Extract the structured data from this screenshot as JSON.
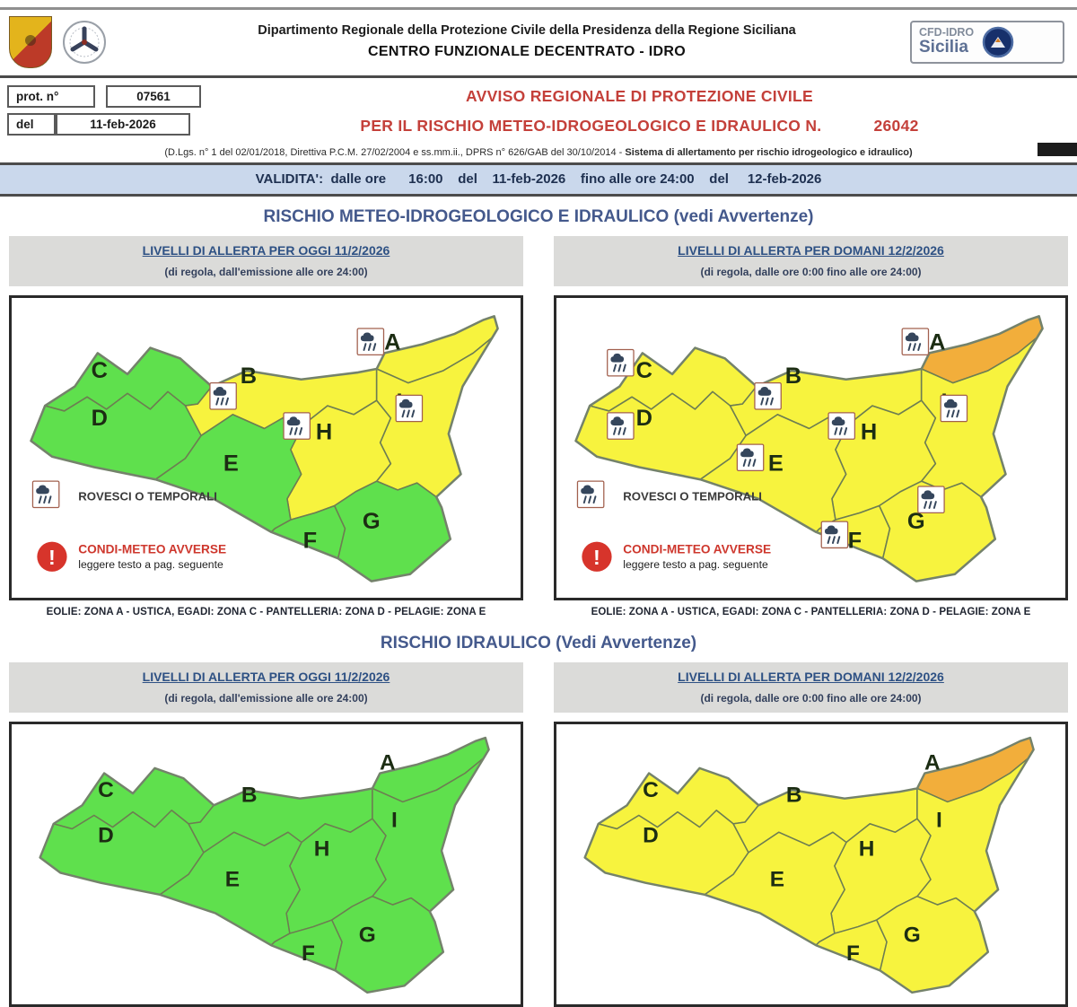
{
  "header": {
    "dept_line1": "Dipartimento Regionale della Protezione Civile della Presidenza della Regione Siciliana",
    "dept_line2": "CENTRO FUNZIONALE DECENTRATO - IDRO",
    "cfd_line1": "CFD-IDRO",
    "cfd_line2": "Sicilia"
  },
  "protocol": {
    "prot_label": "prot. n°",
    "prot_value": "07561",
    "del_label": "del",
    "del_value": "11-feb-2026"
  },
  "title": {
    "line1": "AVVISO REGIONALE DI PROTEZIONE CIVILE",
    "line2": "PER IL RISCHIO METEO-IDROGEOLOGICO E IDRAULICO N.",
    "number": "26042",
    "legal_normal": "(D.Lgs. n° 1 del 02/01/2018, Direttiva P.C.M. 27/02/2004 e ss.mm.ii., DPRS n° 626/GAB del 30/10/2014 - ",
    "legal_bold": "Sistema di allertamento per rischio idrogeologico e idraulico)"
  },
  "validity": {
    "text": "VALIDITA':  dalle ore      16:00    del    11-feb-2026    fino alle ore 24:00    del     12-feb-2026"
  },
  "legend": {
    "storm_label": "ROVESCI O TEMPORALI",
    "warn_title": "CONDI-METEO AVVERSE",
    "warn_sub": "leggere testo a pag. seguente"
  },
  "alert_colors": {
    "green": "#5fe04d",
    "yellow": "#f7f33e",
    "orange": "#f2ae3b"
  },
  "zones": [
    "A",
    "B",
    "C",
    "D",
    "E",
    "F",
    "G",
    "H",
    "I"
  ],
  "sections": [
    {
      "title": "RISCHIO METEO-IDROGEOLOGICO E IDRAULICO (vedi Avvertenze)",
      "panels": [
        {
          "header_title": "LIVELLI DI ALLERTA PER OGGI 11/2/2026",
          "header_subtitle": "(di regola, dall'emissione alle ore 24:00)",
          "zone_levels": {
            "A": "yellow",
            "B": "yellow",
            "C": "green",
            "D": "green",
            "E": "green",
            "F": "green",
            "G": "green",
            "H": "yellow",
            "I": "yellow"
          },
          "storm_icon_zones": [
            "A",
            "B",
            "H",
            "I"
          ],
          "show_legend": true,
          "caption": "EOLIE: ZONA A - USTICA, EGADI: ZONA C - PANTELLERIA: ZONA D - PELAGIE: ZONA E"
        },
        {
          "header_title": "LIVELLI DI ALLERTA PER DOMANI 12/2/2026",
          "header_subtitle": "(di regola, dalle ore 0:00 fino alle ore 24:00)",
          "zone_levels": {
            "A": "orange",
            "B": "yellow",
            "C": "yellow",
            "D": "yellow",
            "E": "yellow",
            "F": "yellow",
            "G": "yellow",
            "H": "yellow",
            "I": "yellow"
          },
          "storm_icon_zones": [
            "A",
            "B",
            "C",
            "D",
            "E",
            "F",
            "G",
            "H",
            "I"
          ],
          "show_legend": true,
          "caption": "EOLIE: ZONA A - USTICA, EGADI: ZONA C - PANTELLERIA: ZONA D - PELAGIE: ZONA E"
        }
      ]
    },
    {
      "title": "RISCHIO IDRAULICO (Vedi Avvertenze)",
      "panels": [
        {
          "header_title": "LIVELLI DI ALLERTA PER OGGI 11/2/2026",
          "header_subtitle": "(di regola, dall'emissione alle ore 24:00)",
          "zone_levels": {
            "A": "green",
            "B": "green",
            "C": "green",
            "D": "green",
            "E": "green",
            "F": "green",
            "G": "green",
            "H": "green",
            "I": "green"
          },
          "storm_icon_zones": [],
          "show_legend": false
        },
        {
          "header_title": "LIVELLI DI ALLERTA PER DOMANI 12/2/2026",
          "header_subtitle": "(di regola, dalle ore 0:00 fino alle ore 24:00)",
          "zone_levels": {
            "A": "orange",
            "B": "yellow",
            "C": "yellow",
            "D": "yellow",
            "E": "yellow",
            "F": "yellow",
            "G": "yellow",
            "H": "yellow",
            "I": "yellow"
          },
          "storm_icon_zones": [],
          "show_legend": false
        }
      ]
    }
  ]
}
